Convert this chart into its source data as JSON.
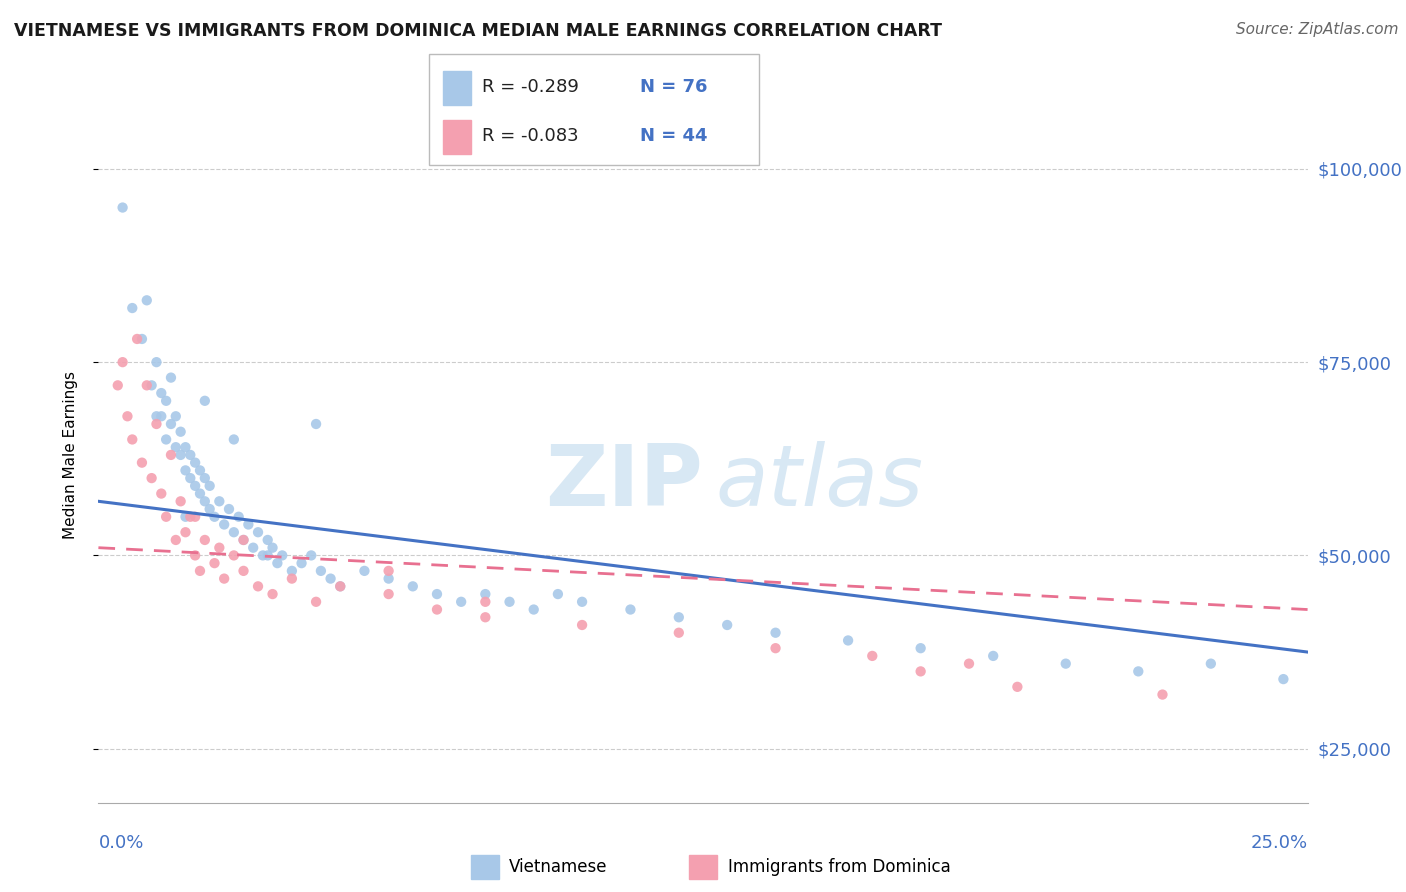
{
  "title": "VIETNAMESE VS IMMIGRANTS FROM DOMINICA MEDIAN MALE EARNINGS CORRELATION CHART",
  "source": "Source: ZipAtlas.com",
  "ylabel": "Median Male Earnings",
  "yticks": [
    25000,
    50000,
    75000,
    100000
  ],
  "ytick_labels": [
    "$25,000",
    "$50,000",
    "$75,000",
    "$100,000"
  ],
  "xmin": 0.0,
  "xmax": 0.25,
  "ymin": 18000,
  "ymax": 108000,
  "legend": {
    "r1": "-0.289",
    "n1": "76",
    "r2": "-0.083",
    "n2": "44"
  },
  "series1_color": "#a8c8e8",
  "series2_color": "#f4a0b0",
  "line1_color": "#4472c4",
  "line2_color": "#e87090",
  "watermark_color": "#d8e8f4",
  "vietnamese_x": [
    0.005,
    0.007,
    0.009,
    0.01,
    0.011,
    0.012,
    0.012,
    0.013,
    0.014,
    0.014,
    0.015,
    0.015,
    0.016,
    0.016,
    0.017,
    0.017,
    0.018,
    0.018,
    0.019,
    0.019,
    0.02,
    0.02,
    0.021,
    0.021,
    0.022,
    0.022,
    0.023,
    0.023,
    0.024,
    0.025,
    0.026,
    0.027,
    0.028,
    0.029,
    0.03,
    0.031,
    0.032,
    0.033,
    0.034,
    0.035,
    0.036,
    0.037,
    0.038,
    0.04,
    0.042,
    0.044,
    0.046,
    0.048,
    0.05,
    0.055,
    0.06,
    0.065,
    0.07,
    0.075,
    0.08,
    0.085,
    0.09,
    0.095,
    0.1,
    0.11,
    0.12,
    0.13,
    0.14,
    0.155,
    0.17,
    0.185,
    0.2,
    0.215,
    0.23,
    0.245,
    0.013,
    0.018,
    0.022,
    0.028,
    0.035,
    0.045
  ],
  "vietnamese_y": [
    95000,
    82000,
    78000,
    83000,
    72000,
    75000,
    68000,
    71000,
    65000,
    70000,
    73000,
    67000,
    64000,
    68000,
    63000,
    66000,
    61000,
    64000,
    60000,
    63000,
    59000,
    62000,
    58000,
    61000,
    57000,
    60000,
    56000,
    59000,
    55000,
    57000,
    54000,
    56000,
    53000,
    55000,
    52000,
    54000,
    51000,
    53000,
    50000,
    52000,
    51000,
    49000,
    50000,
    48000,
    49000,
    50000,
    48000,
    47000,
    46000,
    48000,
    47000,
    46000,
    45000,
    44000,
    45000,
    44000,
    43000,
    45000,
    44000,
    43000,
    42000,
    41000,
    40000,
    39000,
    38000,
    37000,
    36000,
    35000,
    36000,
    34000,
    68000,
    55000,
    70000,
    65000,
    50000,
    67000
  ],
  "dominica_x": [
    0.004,
    0.005,
    0.006,
    0.007,
    0.008,
    0.009,
    0.01,
    0.011,
    0.012,
    0.013,
    0.014,
    0.015,
    0.016,
    0.017,
    0.018,
    0.019,
    0.02,
    0.021,
    0.022,
    0.024,
    0.026,
    0.028,
    0.03,
    0.033,
    0.036,
    0.04,
    0.045,
    0.05,
    0.06,
    0.07,
    0.08,
    0.1,
    0.12,
    0.14,
    0.16,
    0.18,
    0.06,
    0.08,
    0.02,
    0.025,
    0.03,
    0.17,
    0.19,
    0.22
  ],
  "dominica_y": [
    72000,
    75000,
    68000,
    65000,
    78000,
    62000,
    72000,
    60000,
    67000,
    58000,
    55000,
    63000,
    52000,
    57000,
    53000,
    55000,
    50000,
    48000,
    52000,
    49000,
    47000,
    50000,
    48000,
    46000,
    45000,
    47000,
    44000,
    46000,
    45000,
    43000,
    42000,
    41000,
    40000,
    38000,
    37000,
    36000,
    48000,
    44000,
    55000,
    51000,
    52000,
    35000,
    33000,
    32000
  ],
  "line1_x0": 0.0,
  "line1_x1": 0.25,
  "line1_y0": 57000,
  "line1_y1": 37500,
  "line2_x0": 0.0,
  "line2_x1": 0.25,
  "line2_y0": 51000,
  "line2_y1": 43000
}
